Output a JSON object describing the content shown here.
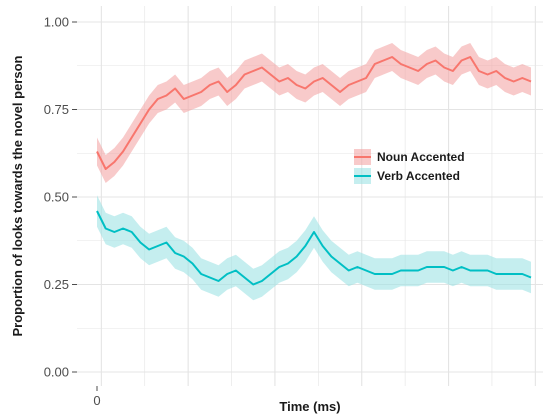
{
  "chart_data": {
    "type": "line",
    "xlabel": "Time (ms)",
    "ylabel": "Proportion of looks towards the novel person",
    "xlim": [
      0,
      100
    ],
    "ylim": [
      0,
      1
    ],
    "x_ticks": [
      0
    ],
    "x_tick_labels": [
      "0"
    ],
    "y_ticks": [
      0,
      0.25,
      0.5,
      0.75,
      1.0
    ],
    "y_tick_labels": [
      "0.00",
      "0.25",
      "0.50",
      "0.75",
      "1.00"
    ],
    "grid": true,
    "legend_position": "right",
    "x": [
      0,
      2,
      4,
      6,
      8,
      10,
      12,
      14,
      16,
      18,
      20,
      22,
      24,
      26,
      28,
      30,
      32,
      34,
      36,
      38,
      40,
      42,
      44,
      46,
      48,
      50,
      52,
      54,
      56,
      58,
      60,
      62,
      64,
      66,
      68,
      70,
      72,
      74,
      76,
      78,
      80,
      82,
      84,
      86,
      88,
      90,
      92,
      94,
      96,
      98,
      100
    ],
    "series": [
      {
        "name": "Noun Accented",
        "color": "#f8766d",
        "band_color": "#f4a6a6",
        "values": [
          0.63,
          0.58,
          0.6,
          0.63,
          0.67,
          0.71,
          0.75,
          0.78,
          0.79,
          0.81,
          0.78,
          0.79,
          0.8,
          0.82,
          0.83,
          0.8,
          0.82,
          0.85,
          0.86,
          0.87,
          0.85,
          0.83,
          0.84,
          0.82,
          0.81,
          0.83,
          0.84,
          0.82,
          0.8,
          0.82,
          0.83,
          0.84,
          0.88,
          0.89,
          0.9,
          0.88,
          0.87,
          0.86,
          0.88,
          0.89,
          0.87,
          0.86,
          0.89,
          0.9,
          0.86,
          0.85,
          0.86,
          0.84,
          0.83,
          0.84,
          0.83
        ],
        "band_halfwidth": 0.04
      },
      {
        "name": "Verb Accented",
        "color": "#00bfc4",
        "band_color": "#9fe3e5",
        "values": [
          0.46,
          0.41,
          0.4,
          0.41,
          0.4,
          0.37,
          0.35,
          0.36,
          0.37,
          0.34,
          0.33,
          0.31,
          0.28,
          0.27,
          0.26,
          0.28,
          0.29,
          0.27,
          0.25,
          0.26,
          0.28,
          0.3,
          0.31,
          0.33,
          0.36,
          0.4,
          0.36,
          0.33,
          0.31,
          0.29,
          0.3,
          0.29,
          0.28,
          0.28,
          0.28,
          0.29,
          0.29,
          0.29,
          0.3,
          0.3,
          0.3,
          0.29,
          0.3,
          0.29,
          0.29,
          0.29,
          0.28,
          0.28,
          0.28,
          0.28,
          0.27
        ],
        "band_halfwidth": 0.045
      }
    ]
  }
}
